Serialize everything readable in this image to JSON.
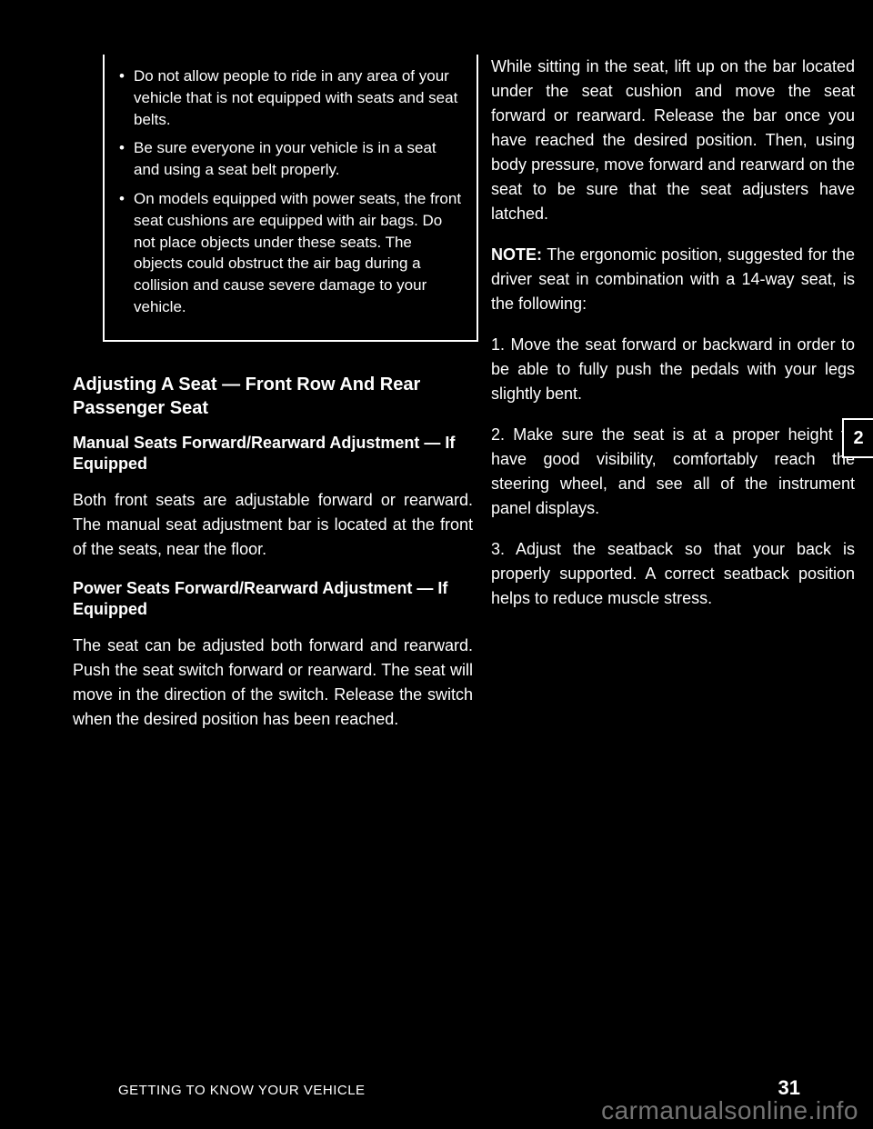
{
  "warning": {
    "items": [
      "Do not allow people to ride in any area of your vehicle that is not equipped with seats and seat belts.",
      "Be sure everyone in your vehicle is in a seat and using a seat belt properly.",
      "On models equipped with power seats, the front seat cushions are equipped with air bags. Do not place objects under these seats. The objects could obstruct the air bag during a collision and cause severe damage to your vehicle."
    ]
  },
  "left": {
    "heading": "Adjusting A Seat — Front Row And Rear Passenger Seat",
    "sub1": {
      "title": "Manual Seats Forward/Rearward Adjustment — If Equipped",
      "body": "Both front seats are adjustable forward or rearward. The manual seat adjustment bar is located at the front of the seats, near the floor."
    },
    "sub2": {
      "title": "Power Seats Forward/Rearward Adjustment — If Equipped",
      "body": "The seat can be adjusted both forward and rearward. Push the seat switch forward or rearward. The seat will move in the direction of the switch. Release the switch when the desired position has been reached."
    }
  },
  "right": {
    "p1": "While sitting in the seat, lift up on the bar located under the seat cushion and move the seat forward or rearward. Release the bar once you have reached the desired position. Then, using body pressure, move forward and rearward on the seat to be sure that the seat adjusters have latched.",
    "note_label": "NOTE:",
    "note_body": "The ergonomic position, suggested for the driver seat in combination with a 14-way seat, is the following:",
    "steps": [
      "Move the seat forward or backward in order to be able to fully push the pedals with your legs slightly bent.",
      "Make sure the seat is at a proper height to have good visibility, comfortably reach the steering wheel, and see all of the instrument panel displays.",
      "Adjust the seatback so that your back is properly supported. A correct seatback position helps to reduce muscle stress."
    ]
  },
  "tab": "2",
  "footer": {
    "title": "GETTING TO KNOW YOUR VEHICLE",
    "page": "31"
  },
  "watermark": "carmanualsonline.info"
}
